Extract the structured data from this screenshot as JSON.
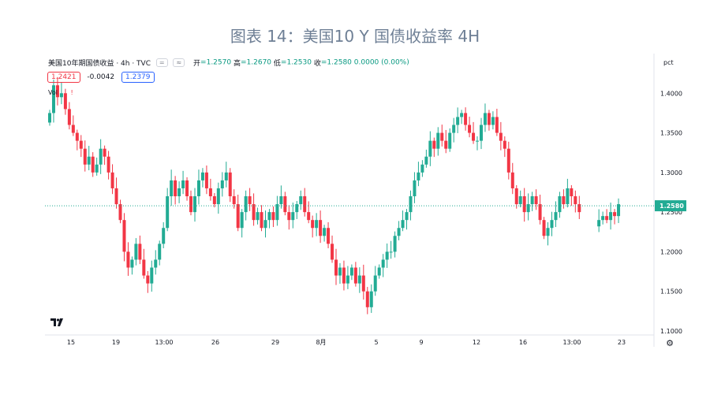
{
  "figure_title": "图表 14：美国10 Y 国债收益率 4H",
  "legend": {
    "symbol": "美国10年期国债收益 · 4h · TVC",
    "ohlc": [
      {
        "label": "开",
        "value": "=1.2570"
      },
      {
        "label": "高",
        "value": "=1.2670"
      },
      {
        "label": "低",
        "value": "=1.2530"
      },
      {
        "label": "收",
        "value": "=1.2580"
      }
    ],
    "change": "0.0000 (0.00%)"
  },
  "badges": {
    "bid": "1.2421",
    "spread": "-0.0042",
    "ask": "1.2379"
  },
  "vol_label": "Vol",
  "vol_warn": "!",
  "price_axis_unit": "pct",
  "last_price_label": "1.2580",
  "logo_text": "T𝟕",
  "colors": {
    "up": "#22ab94",
    "down": "#f23645",
    "last_line": "#22ab94",
    "title": "#6e7f95"
  },
  "chart_data": {
    "type": "candlestick",
    "title": "图表 14：美国10 Y 国债收益率 4H",
    "interval": "4h",
    "y_ticks": [
      "1.1000",
      "1.1500",
      "1.2000",
      "1.2500",
      "1.3000",
      "1.3500",
      "1.4000"
    ],
    "ylim": [
      1.095,
      1.45
    ],
    "x_ticks": [
      "15",
      "19",
      "13:00",
      "26",
      "29",
      "8月",
      "5",
      "9",
      "12",
      "16",
      "13:00",
      "23"
    ],
    "last_price": 1.258,
    "gap_after_index": 135,
    "closes": [
      1.375,
      1.41,
      1.395,
      1.4,
      1.38,
      1.36,
      1.35,
      1.34,
      1.33,
      1.31,
      1.32,
      1.3,
      1.31,
      1.33,
      1.32,
      1.3,
      1.28,
      1.26,
      1.24,
      1.2,
      1.18,
      1.19,
      1.21,
      1.19,
      1.17,
      1.16,
      1.18,
      1.19,
      1.21,
      1.23,
      1.27,
      1.29,
      1.27,
      1.28,
      1.29,
      1.27,
      1.25,
      1.27,
      1.29,
      1.3,
      1.28,
      1.27,
      1.26,
      1.28,
      1.29,
      1.3,
      1.27,
      1.26,
      1.23,
      1.25,
      1.27,
      1.26,
      1.24,
      1.25,
      1.23,
      1.24,
      1.25,
      1.24,
      1.26,
      1.27,
      1.25,
      1.24,
      1.25,
      1.26,
      1.27,
      1.25,
      1.24,
      1.23,
      1.24,
      1.22,
      1.23,
      1.21,
      1.19,
      1.17,
      1.18,
      1.16,
      1.17,
      1.18,
      1.16,
      1.17,
      1.15,
      1.13,
      1.15,
      1.17,
      1.18,
      1.19,
      1.2,
      1.2,
      1.22,
      1.23,
      1.24,
      1.25,
      1.27,
      1.29,
      1.3,
      1.31,
      1.32,
      1.34,
      1.33,
      1.35,
      1.34,
      1.33,
      1.35,
      1.36,
      1.37,
      1.375,
      1.36,
      1.35,
      1.34,
      1.34,
      1.36,
      1.375,
      1.36,
      1.37,
      1.35,
      1.34,
      1.33,
      1.3,
      1.28,
      1.26,
      1.27,
      1.25,
      1.26,
      1.27,
      1.26,
      1.24,
      1.22,
      1.23,
      1.24,
      1.25,
      1.27,
      1.26,
      1.28,
      1.27,
      1.26,
      1.25,
      1.24,
      1.245,
      1.24,
      1.25,
      1.245,
      1.26
    ]
  }
}
